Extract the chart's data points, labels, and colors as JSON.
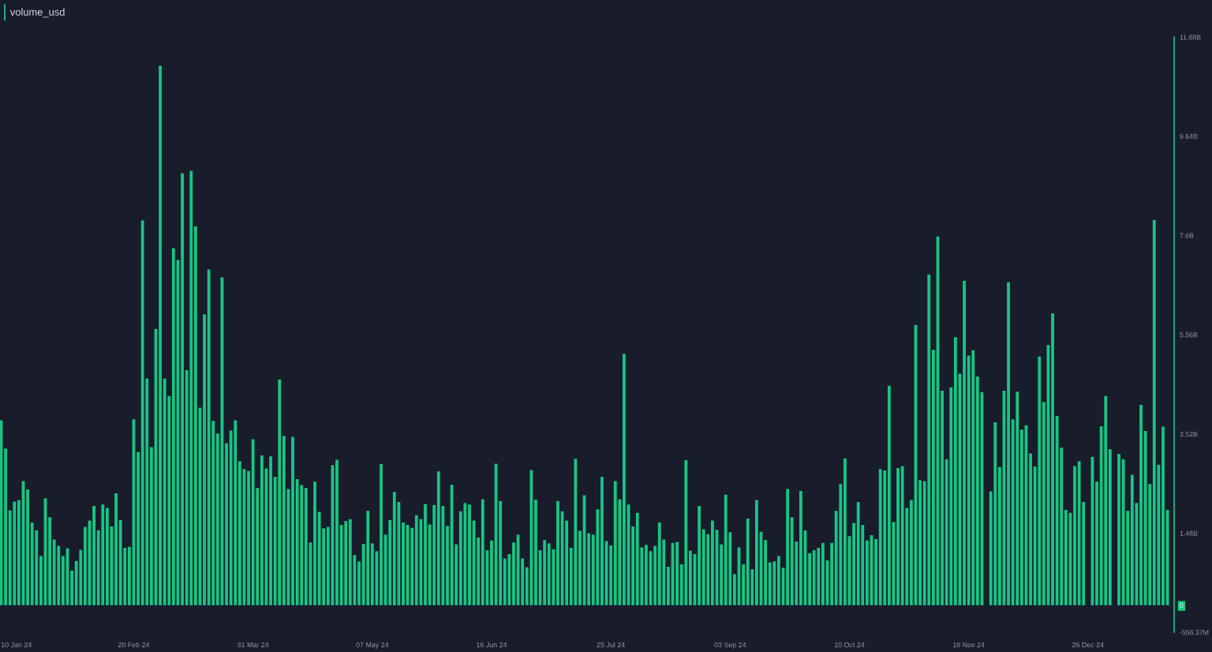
{
  "chart_data": {
    "type": "bar",
    "legend": "top left",
    "categories": [
      null,
      null,
      null,
      "10 Jan 24",
      null,
      null,
      null,
      null,
      null,
      null,
      null,
      null,
      null,
      null,
      null,
      null,
      null,
      null,
      null,
      null,
      null,
      null,
      null,
      null,
      null,
      null,
      null,
      null,
      null,
      null,
      "20 Feb 24",
      null,
      null,
      null,
      null,
      null,
      null,
      null,
      null,
      null,
      null,
      null,
      null,
      null,
      null,
      null,
      null,
      null,
      null,
      null,
      null,
      null,
      null,
      null,
      null,
      null,
      null,
      "31 Mar 24",
      null,
      null,
      null,
      null,
      null,
      null,
      null,
      null,
      null,
      null,
      null,
      null,
      null,
      null,
      null,
      null,
      null,
      null,
      null,
      null,
      null,
      null,
      null,
      null,
      null,
      null,
      "07 May 24",
      null,
      null,
      null,
      null,
      null,
      null,
      null,
      null,
      null,
      null,
      null,
      null,
      null,
      null,
      null,
      null,
      null,
      null,
      null,
      null,
      null,
      null,
      null,
      null,
      null,
      null,
      "16 Jun 24",
      null,
      null,
      null,
      null,
      null,
      null,
      null,
      null,
      null,
      null,
      null,
      null,
      null,
      null,
      null,
      null,
      null,
      null,
      null,
      null,
      null,
      null,
      null,
      null,
      null,
      null,
      "25 Jul 24",
      null,
      null,
      null,
      null,
      null,
      null,
      null,
      null,
      null,
      null,
      null,
      null,
      null,
      null,
      null,
      null,
      null,
      null,
      null,
      null,
      null,
      null,
      null,
      null,
      null,
      null,
      "03 Sep 24",
      null,
      null,
      null,
      null,
      null,
      null,
      null,
      null,
      null,
      null,
      null,
      null,
      null,
      null,
      null,
      null,
      null,
      null,
      null,
      null,
      null,
      null,
      null,
      null,
      null,
      null,
      "10 Oct 24",
      null,
      null,
      null,
      null,
      null,
      null,
      null,
      null,
      null,
      null,
      null,
      null,
      null,
      null,
      null,
      null,
      null,
      null,
      null,
      null,
      null,
      null,
      null,
      null,
      null,
      null,
      "18 Nov 24",
      null,
      null,
      null,
      null,
      null,
      null,
      null,
      null,
      null,
      null,
      null,
      null,
      null,
      null,
      null,
      null,
      null,
      null,
      null,
      null,
      null,
      null,
      null,
      null,
      null,
      null,
      "26 Dec 24",
      null,
      null,
      null,
      null,
      null,
      null,
      null,
      null,
      null,
      null,
      null,
      null,
      null,
      null,
      null,
      null,
      null,
      null
    ],
    "series": [
      {
        "name": "volume_usd",
        "color": "#16c784",
        "values": [
          3800000000.0,
          3220000000.0,
          1950000000.0,
          2130000000.0,
          2160000000.0,
          2550000000.0,
          2380000000.0,
          1700000000.0,
          1540000000.0,
          1010000000.0,
          2200000000.0,
          1810000000.0,
          1350000000.0,
          1220000000.0,
          1010000000.0,
          1170000000.0,
          710000000.0,
          910000000.0,
          1140000000.0,
          1610000000.0,
          1740000000.0,
          2040000000.0,
          1540000000.0,
          2070000000.0,
          2000000000.0,
          1620000000.0,
          2300000000.0,
          1750000000.0,
          1180000000.0,
          1200000000.0,
          3820000000.0,
          3150000000.0,
          7910000000.0,
          4660000000.0,
          3250000000.0,
          5680000000.0,
          11090000000.0,
          4660000000.0,
          4300000000.0,
          7340000000.0,
          7100000000.0,
          8880000000.0,
          4830000000.0,
          8930000000.0,
          7790000000.0,
          4060000000.0,
          5980000000.0,
          6900000000.0,
          3790000000.0,
          3530000000.0,
          6740000000.0,
          3330000000.0,
          3590000000.0,
          3800000000.0,
          2960000000.0,
          2800000000.0,
          2760000000.0,
          3410000000.0,
          2410000000.0,
          3080000000.0,
          2810000000.0,
          3060000000.0,
          2640000000.0,
          4640000000.0,
          3480000000.0,
          2390000000.0,
          3460000000.0,
          2590000000.0,
          2470000000.0,
          2410000000.0,
          1290000000.0,
          2540000000.0,
          1920000000.0,
          1580000000.0,
          1610000000.0,
          2880000000.0,
          2990000000.0,
          1650000000.0,
          1730000000.0,
          1770000000.0,
          1030000000.0,
          900000000.0,
          1260000000.0,
          1940000000.0,
          1270000000.0,
          1110000000.0,
          2900000000.0,
          1450000000.0,
          1750000000.0,
          2330000000.0,
          2120000000.0,
          1700000000.0,
          1650000000.0,
          1590000000.0,
          1850000000.0,
          1770000000.0,
          2080000000.0,
          1660000000.0,
          2060000000.0,
          2750000000.0,
          2040000000.0,
          1630000000.0,
          2480000000.0,
          1250000000.0,
          1930000000.0,
          2100000000.0,
          2070000000.0,
          1740000000.0,
          1390000000.0,
          2180000000.0,
          1130000000.0,
          1330000000.0,
          2910000000.0,
          2140000000.0,
          960000000.0,
          1050000000.0,
          1290000000.0,
          1450000000.0,
          960000000.0,
          780000000.0,
          2780000000.0,
          2170000000.0,
          1130000000.0,
          1340000000.0,
          1270000000.0,
          1150000000.0,
          2140000000.0,
          1930000000.0,
          1740000000.0,
          1180000000.0,
          3010000000.0,
          1530000000.0,
          2260000000.0,
          1480000000.0,
          1450000000.0,
          1970000000.0,
          2640000000.0,
          1320000000.0,
          1230000000.0,
          2550000000.0,
          2180000000.0,
          5170000000.0,
          2070000000.0,
          1620000000.0,
          1900000000.0,
          1190000000.0,
          1240000000.0,
          1110000000.0,
          1220000000.0,
          1700000000.0,
          1350000000.0,
          790000000.0,
          1280000000.0,
          1300000000.0,
          840000000.0,
          2980000000.0,
          1120000000.0,
          1050000000.0,
          2040000000.0,
          1560000000.0,
          1460000000.0,
          1740000000.0,
          1550000000.0,
          1250000000.0,
          2270000000.0,
          1500000000.0,
          640000000.0,
          1190000000.0,
          840000000.0,
          1780000000.0,
          740000000.0,
          2160000000.0,
          1510000000.0,
          1340000000.0,
          880000000.0,
          900000000.0,
          1010000000.0,
          770000000.0,
          2390000000.0,
          1810000000.0,
          1310000000.0,
          2350000000.0,
          1540000000.0,
          1070000000.0,
          1130000000.0,
          1180000000.0,
          1280000000.0,
          920000000.0,
          1280000000.0,
          1940000000.0,
          2490000000.0,
          3020000000.0,
          1420000000.0,
          1690000000.0,
          2120000000.0,
          1650000000.0,
          1330000000.0,
          1440000000.0,
          1360000000.0,
          2800000000.0,
          2770000000.0,
          4510000000.0,
          1710000000.0,
          2820000000.0,
          2860000000.0,
          2000000000.0,
          2160000000.0,
          5760000000.0,
          2570000000.0,
          2550000000.0,
          6800000000.0,
          5250000000.0,
          7580000000.0,
          4410000000.0,
          3000000000.0,
          4480000000.0,
          5510000000.0,
          4760000000.0,
          6670000000.0,
          5130000000.0,
          5240000000.0,
          4700000000.0,
          4380000000.0,
          null,
          2340000000.0,
          3760000000.0,
          2840000000.0,
          4410000000.0,
          6640000000.0,
          3820000000.0,
          4390000000.0,
          3610000000.0,
          3700000000.0,
          3120000000.0,
          2850000000.0,
          5110000000.0,
          4180000000.0,
          5350000000.0,
          6000000000.0,
          3890000000.0,
          3240000000.0,
          1960000000.0,
          1900000000.0,
          2860000000.0,
          2960000000.0,
          2120000000.0,
          null,
          3050000000.0,
          2540000000.0,
          3680000000.0,
          4300000000.0,
          3210000000.0,
          null,
          3110000000.0,
          3000000000.0,
          1940000000.0,
          2680000000.0,
          2100000000.0,
          4120000000.0,
          3580000000.0,
          2490000000.0,
          7920000000.0,
          2890000000.0,
          3670000000.0,
          1960000000.0
        ]
      }
    ],
    "ylim": [
      -556370000,
      11680000000
    ],
    "yticks": [
      {
        "value": -556370000,
        "label": "-556.37M"
      },
      0,
      {
        "value": 1480000000,
        "label": "1.48B"
      },
      {
        "value": 3520000000,
        "label": "3.52B"
      },
      {
        "value": 5560000000,
        "label": "5.56B"
      },
      {
        "value": 7600000000,
        "label": "7.6B"
      },
      {
        "value": 9640000000,
        "label": "9.64B"
      },
      {
        "value": 11680000000,
        "label": "11.68B"
      }
    ]
  }
}
